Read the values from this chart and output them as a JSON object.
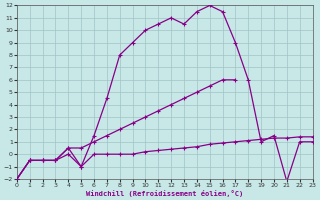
{
  "bg_color": "#c8e8e8",
  "grid_color": "#a0c4c4",
  "line_color": "#880088",
  "xlim": [
    0,
    23
  ],
  "ylim": [
    -2,
    12
  ],
  "xticks": [
    0,
    1,
    2,
    3,
    4,
    5,
    6,
    7,
    8,
    9,
    10,
    11,
    12,
    13,
    14,
    15,
    16,
    17,
    18,
    19,
    20,
    21,
    22,
    23
  ],
  "yticks": [
    -2,
    -1,
    0,
    1,
    2,
    3,
    4,
    5,
    6,
    7,
    8,
    9,
    10,
    11,
    12
  ],
  "xlabel": "Windchill (Refroidissement éolien,°C)",
  "line1_x": [
    0,
    1,
    2,
    3,
    4,
    5,
    6,
    7,
    8,
    9,
    10,
    11,
    12,
    13,
    14,
    15,
    16,
    17,
    18,
    19,
    20,
    21,
    22,
    23
  ],
  "line1_y": [
    -2,
    -0.5,
    -0.5,
    -0.5,
    0.5,
    -1,
    1.5,
    4.5,
    8,
    9,
    10,
    10.5,
    11,
    10.5,
    11.5,
    12,
    11.5,
    9,
    6.0,
    1.0,
    1.5,
    -2.2,
    1,
    1
  ],
  "line2_x": [
    0,
    1,
    2,
    3,
    4,
    5,
    6,
    7,
    8,
    9,
    10,
    11,
    12,
    13,
    14,
    15,
    16,
    17
  ],
  "line2_y": [
    -2,
    -0.5,
    -0.5,
    -0.5,
    0.5,
    0.5,
    1.0,
    1.5,
    2.0,
    2.5,
    3.0,
    3.5,
    4.0,
    4.5,
    5.0,
    5.5,
    6.0,
    6.0
  ],
  "line3_x": [
    0,
    1,
    2,
    3,
    4,
    5,
    6,
    7,
    8,
    9,
    10,
    11,
    12,
    13,
    14,
    15,
    16,
    17,
    18,
    19,
    20,
    21,
    22,
    23
  ],
  "line3_y": [
    -2,
    -0.5,
    -0.5,
    -0.5,
    0,
    -1,
    0,
    0,
    0,
    0,
    0.2,
    0.3,
    0.4,
    0.5,
    0.6,
    0.8,
    0.9,
    1.0,
    1.1,
    1.2,
    1.3,
    1.3,
    1.4,
    1.4
  ]
}
